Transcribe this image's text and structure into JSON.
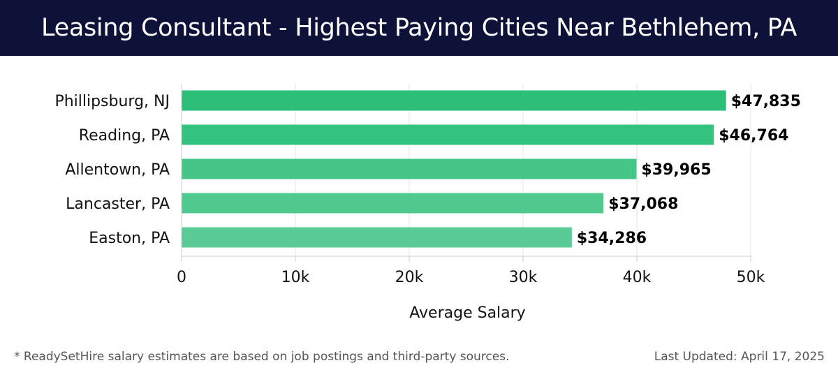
{
  "header": {
    "title": "Leasing Consultant - Highest Paying Cities Near Bethlehem, PA"
  },
  "chart_data": {
    "type": "bar",
    "orientation": "horizontal",
    "title": "Leasing Consultant - Highest Paying Cities Near Bethlehem, PA",
    "xlabel": "Average Salary",
    "ylabel": "",
    "categories": [
      "Phillipsburg, NJ",
      "Reading, PA",
      "Allentown, PA",
      "Lancaster, PA",
      "Easton, PA"
    ],
    "values": [
      47835,
      46764,
      39965,
      37068,
      34286
    ],
    "value_labels": [
      "$47,835",
      "$46,764",
      "$39,965",
      "$37,068",
      "$34,286"
    ],
    "bar_colors": [
      "#2bbf7a",
      "#33c27f",
      "#45c688",
      "#4fc98e",
      "#58cc94"
    ],
    "xlim": [
      0,
      50000
    ],
    "xticks": [
      0,
      10000,
      20000,
      30000,
      40000,
      50000
    ],
    "xtick_labels": [
      "0",
      "10k",
      "20k",
      "30k",
      "40k",
      "50k"
    ],
    "grid": true,
    "legend": "none"
  },
  "footer": {
    "note": "* ReadySetHire salary estimates are based on job postings and third-party sources.",
    "updated": "Last Updated: April 17, 2025"
  }
}
